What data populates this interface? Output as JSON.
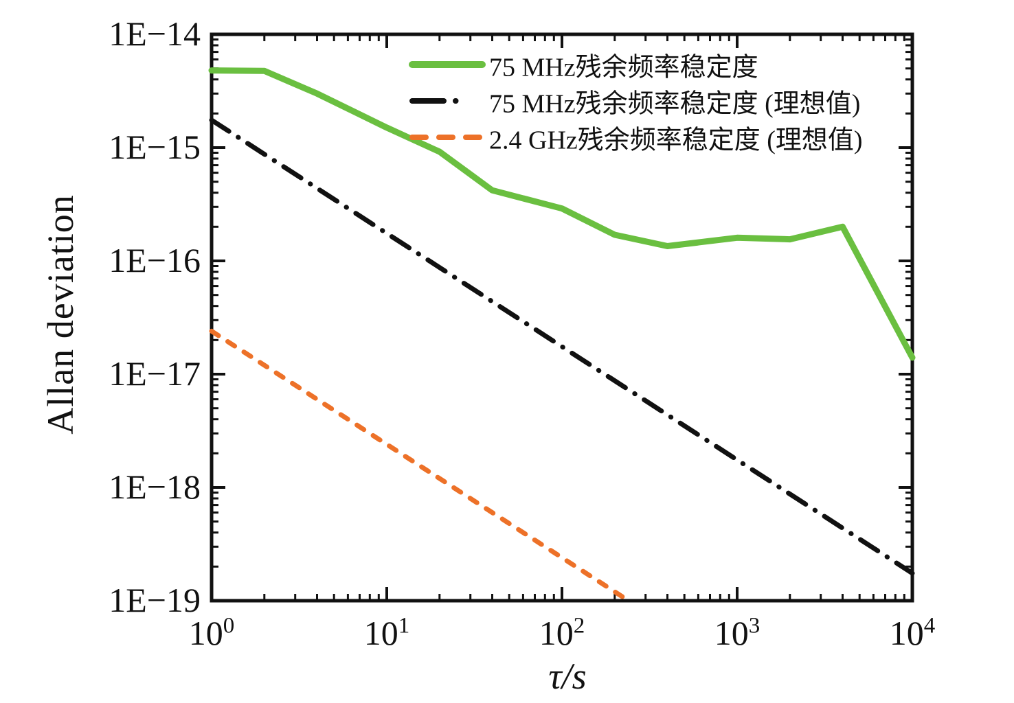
{
  "figure": {
    "background": "#ffffff",
    "text_color": "#111111",
    "frame_color": "#111111"
  },
  "chart_data": {
    "type": "line",
    "title": "",
    "xlabel": "τ/s",
    "ylabel": "Allan deviation",
    "x_scale": "log",
    "y_scale": "log",
    "xlim": [
      1,
      10000
    ],
    "ylim": [
      1e-19,
      1e-14
    ],
    "grid": "off",
    "legend_position": "top-inside",
    "x_ticks": [
      {
        "base": "10",
        "exp": "0"
      },
      {
        "base": "10",
        "exp": "1"
      },
      {
        "base": "10",
        "exp": "2"
      },
      {
        "base": "10",
        "exp": "3"
      },
      {
        "base": "10",
        "exp": "4"
      }
    ],
    "y_tick_labels": [
      "1E−14",
      "1E−15",
      "1E−16",
      "1E−17",
      "1E−18",
      "1E−19"
    ],
    "series": [
      {
        "name": "75 MHz残余频率稳定度",
        "color": "#6abf40",
        "style": "solid",
        "x": [
          1,
          2,
          4,
          10,
          20,
          40,
          100,
          200,
          400,
          1000,
          2000,
          4000,
          10000
        ],
        "y": [
          4.8e-15,
          4.75e-15,
          3e-15,
          1.5e-15,
          9.2e-16,
          4.2e-16,
          2.9e-16,
          1.7e-16,
          1.35e-16,
          1.6e-16,
          1.55e-16,
          2e-16,
          1.4e-17
        ]
      },
      {
        "name": "75 MHz残余频率稳定度 (理想值)",
        "color": "#111111",
        "style": "dashdot",
        "x": [
          1,
          10000
        ],
        "y": [
          1.75e-15,
          1.75e-19
        ]
      },
      {
        "name": "2.4 GHz残余频率稳定度 (理想值)",
        "color": "#ed7128",
        "style": "dashed",
        "x": [
          1,
          240
        ],
        "y": [
          2.4e-17,
          1e-19
        ]
      }
    ]
  }
}
